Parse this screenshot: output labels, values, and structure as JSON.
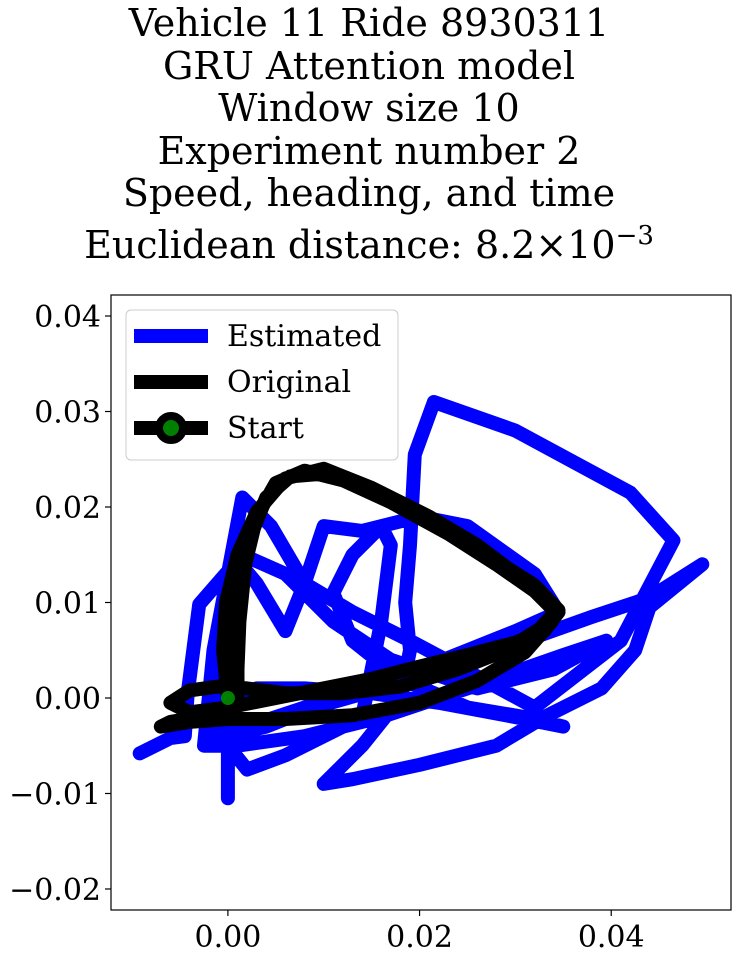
{
  "chart_data": {
    "type": "line",
    "title_lines": [
      "Vehicle 11 Ride 8930311",
      "GRU Attention model",
      "Window size 10",
      "Experiment number 2",
      "Speed, heading, and time"
    ],
    "metric_label": "Euclidean distance: ",
    "metric_mantissa": "8.2",
    "metric_times": "×",
    "metric_base": "10",
    "metric_exponent": "−3",
    "xlim": [
      -0.0122,
      0.0525
    ],
    "ylim": [
      -0.0222,
      0.0422
    ],
    "x_ticks": [
      {
        "value": 0.0,
        "label": "0.00"
      },
      {
        "value": 0.02,
        "label": "0.02"
      },
      {
        "value": 0.04,
        "label": "0.04"
      }
    ],
    "y_ticks": [
      {
        "value": 0.04,
        "label": "0.04"
      },
      {
        "value": 0.03,
        "label": "0.03"
      },
      {
        "value": 0.02,
        "label": "0.02"
      },
      {
        "value": 0.01,
        "label": "0.01"
      },
      {
        "value": 0.0,
        "label": "0.00"
      },
      {
        "value": -0.01,
        "label": "−0.01"
      },
      {
        "value": -0.02,
        "label": "−0.02"
      }
    ],
    "grid": false,
    "legend_position": "upper-left",
    "legend": [
      {
        "label": "Estimated",
        "color": "#0000ff",
        "marker": false
      },
      {
        "label": "Original",
        "color": "#000000",
        "marker": false
      },
      {
        "label": "Start",
        "color": "#000000",
        "marker": true,
        "marker_face": "#008000"
      }
    ],
    "series": [
      {
        "name": "Estimated",
        "color": "#0000ff",
        "points": [
          [
            -0.0092,
            -0.0058
          ],
          [
            -0.006,
            -0.0042
          ],
          [
            -0.0045,
            -0.004
          ],
          [
            -0.0042,
            0.0005
          ],
          [
            -0.003,
            0.0098
          ],
          [
            0.0015,
            0.015
          ],
          [
            0.006,
            0.013
          ],
          [
            0.011,
            0.008
          ],
          [
            0.017,
            0.004
          ],
          [
            0.026,
            0.001
          ],
          [
            0.034,
            0.003
          ],
          [
            0.0395,
            0.006
          ],
          [
            0.035,
            0.0045
          ],
          [
            0.025,
            0.001
          ],
          [
            0.016,
            -0.002
          ],
          [
            0.008,
            -0.004
          ],
          [
            0.001,
            -0.005
          ],
          [
            -0.0025,
            -0.005
          ],
          [
            -0.0015,
            0.005
          ],
          [
            0.0015,
            0.021
          ],
          [
            0.0045,
            0.018
          ],
          [
            0.008,
            0.012
          ],
          [
            0.013,
            0.009
          ],
          [
            0.019,
            0.006
          ],
          [
            0.0265,
            0.002
          ],
          [
            0.032,
            -0.001
          ],
          [
            0.041,
            0.006
          ],
          [
            0.0465,
            0.0165
          ],
          [
            0.042,
            0.0215
          ],
          [
            0.03,
            0.028
          ],
          [
            0.0215,
            0.031
          ],
          [
            0.0195,
            0.0255
          ],
          [
            0.019,
            0.016
          ],
          [
            0.0185,
            0.01
          ],
          [
            0.019,
            0.005
          ],
          [
            0.018,
            0.0
          ],
          [
            0.014,
            -0.005
          ],
          [
            0.01,
            -0.009
          ],
          [
            0.013,
            -0.0085
          ],
          [
            0.02,
            -0.007
          ],
          [
            0.028,
            -0.005
          ],
          [
            0.033,
            -0.002
          ],
          [
            0.039,
            0.001
          ],
          [
            0.0425,
            0.005
          ],
          [
            0.044,
            0.0095
          ],
          [
            0.0495,
            0.014
          ],
          [
            0.044,
            0.0105
          ],
          [
            0.038,
            0.0085
          ],
          [
            0.031,
            0.006
          ],
          [
            0.025,
            0.004
          ],
          [
            0.016,
            0.001
          ],
          [
            0.009,
            -0.001
          ],
          [
            0.004,
            -0.003
          ],
          [
            0.0,
            -0.004
          ],
          [
            -0.0015,
            0.002
          ],
          [
            0.0005,
            0.015
          ],
          [
            0.003,
            0.012
          ],
          [
            0.006,
            0.007
          ],
          [
            0.008,
            0.012
          ],
          [
            0.01,
            0.018
          ],
          [
            0.014,
            0.0175
          ],
          [
            0.02,
            0.019
          ],
          [
            0.025,
            0.018
          ],
          [
            0.032,
            0.013
          ],
          [
            0.0345,
            0.009
          ],
          [
            0.03,
            0.007
          ],
          [
            0.025,
            0.005
          ],
          [
            0.02,
            0.003
          ],
          [
            0.013,
            0.001
          ],
          [
            0.008,
            -0.001
          ],
          [
            0.002,
            -0.003
          ],
          [
            -0.002,
            -0.003
          ],
          [
            0.0,
            -0.005
          ],
          [
            0.002,
            -0.0075
          ],
          [
            0.006,
            -0.006
          ],
          [
            0.01,
            -0.004
          ],
          [
            0.014,
            -0.002
          ],
          [
            0.016,
            0.008
          ],
          [
            0.017,
            0.016
          ],
          [
            0.016,
            0.018
          ],
          [
            0.013,
            0.015
          ],
          [
            0.011,
            0.011
          ],
          [
            0.013,
            0.006
          ],
          [
            0.018,
            0.002
          ],
          [
            0.025,
            -0.001
          ],
          [
            0.031,
            -0.002
          ],
          [
            0.035,
            -0.003
          ],
          [
            0.03,
            -0.002
          ],
          [
            0.022,
            -0.0005
          ],
          [
            0.015,
            0.0005
          ],
          [
            0.008,
            0.001
          ],
          [
            0.003,
            0.001
          ],
          [
            0.0,
            0.0
          ],
          [
            0.0,
            -0.0105
          ]
        ]
      },
      {
        "name": "Original",
        "color": "#000000",
        "points": [
          [
            0.0,
            0.0
          ],
          [
            -0.0005,
            0.005
          ],
          [
            -0.0002,
            0.01
          ],
          [
            0.001,
            0.015
          ],
          [
            0.003,
            0.0195
          ],
          [
            0.006,
            0.023
          ],
          [
            0.01,
            0.024
          ],
          [
            0.015,
            0.022
          ],
          [
            0.021,
            0.019
          ],
          [
            0.026,
            0.016
          ],
          [
            0.03,
            0.013
          ],
          [
            0.033,
            0.0105
          ],
          [
            0.0345,
            0.009
          ],
          [
            0.033,
            0.007
          ],
          [
            0.03,
            0.0058
          ],
          [
            0.025,
            0.0045
          ],
          [
            0.02,
            0.0033
          ],
          [
            0.015,
            0.002
          ],
          [
            0.01,
            0.001
          ],
          [
            0.005,
            0.0
          ],
          [
            0.0,
            -0.001
          ],
          [
            -0.004,
            -0.0015
          ],
          [
            -0.006,
            -0.0005
          ],
          [
            -0.004,
            0.0008
          ],
          [
            -0.001,
            0.0012
          ],
          [
            0.002,
            0.001
          ],
          [
            0.006,
            0.0005
          ],
          [
            0.012,
            0.0005
          ],
          [
            0.018,
            0.0012
          ],
          [
            0.024,
            0.003
          ],
          [
            0.029,
            0.005
          ],
          [
            0.0325,
            0.0072
          ],
          [
            0.0342,
            0.009
          ],
          [
            0.032,
            0.0112
          ],
          [
            0.028,
            0.014
          ],
          [
            0.023,
            0.0172
          ],
          [
            0.017,
            0.0205
          ],
          [
            0.012,
            0.0228
          ],
          [
            0.008,
            0.0238
          ],
          [
            0.005,
            0.0225
          ],
          [
            0.003,
            0.019
          ],
          [
            0.0018,
            0.014
          ],
          [
            0.0012,
            0.008
          ],
          [
            0.001,
            0.003
          ],
          [
            0.001,
            0.0
          ],
          [
            0.0,
            -0.0015
          ],
          [
            -0.003,
            -0.002
          ],
          [
            -0.006,
            -0.0025
          ],
          [
            -0.007,
            -0.003
          ],
          [
            -0.004,
            -0.0025
          ],
          [
            0.0,
            -0.0022
          ],
          [
            0.006,
            -0.0022
          ],
          [
            0.013,
            -0.0018
          ],
          [
            0.02,
            -0.0005
          ],
          [
            0.026,
            0.0018
          ],
          [
            0.031,
            0.0048
          ],
          [
            0.0338,
            0.008
          ],
          [
            0.0345,
            0.0092
          ],
          [
            0.032,
            0.0118
          ],
          [
            0.027,
            0.015
          ],
          [
            0.021,
            0.0188
          ],
          [
            0.015,
            0.0218
          ],
          [
            0.01,
            0.0235
          ],
          [
            0.0065,
            0.0232
          ],
          [
            0.004,
            0.021
          ],
          [
            0.002,
            0.016
          ],
          [
            0.0008,
            0.01
          ],
          [
            0.0,
            0.004
          ],
          [
            0.0,
            0.0
          ]
        ]
      }
    ],
    "start_point": [
      0.0,
      0.0
    ]
  }
}
